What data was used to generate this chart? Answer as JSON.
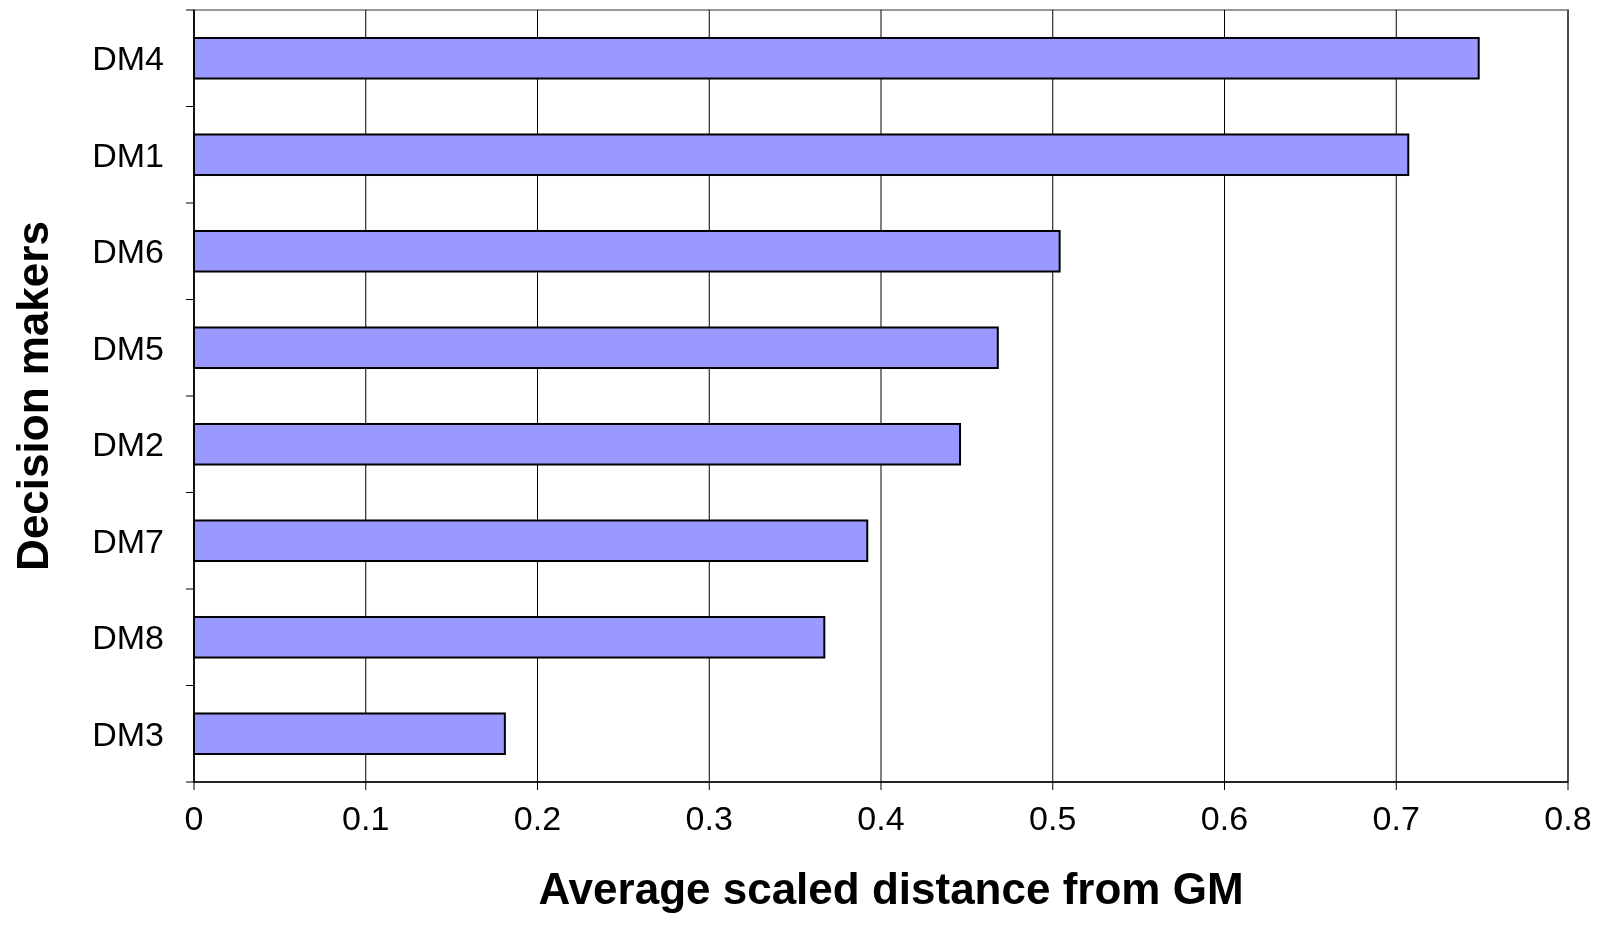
{
  "chart_data": {
    "type": "bar",
    "orientation": "horizontal",
    "xlabel": "Average scaled distance from GM",
    "ylabel": "Decision makers",
    "categories": [
      "DM4",
      "DM1",
      "DM6",
      "DM5",
      "DM2",
      "DM7",
      "DM8",
      "DM3"
    ],
    "values": [
      0.748,
      0.707,
      0.504,
      0.468,
      0.446,
      0.392,
      0.367,
      0.181
    ],
    "color": "#9999ff",
    "xlim": [
      0,
      0.8
    ],
    "xticks": [
      0,
      0.1,
      0.2,
      0.3,
      0.4,
      0.5,
      0.6,
      0.7,
      0.8
    ],
    "grid": "x"
  }
}
